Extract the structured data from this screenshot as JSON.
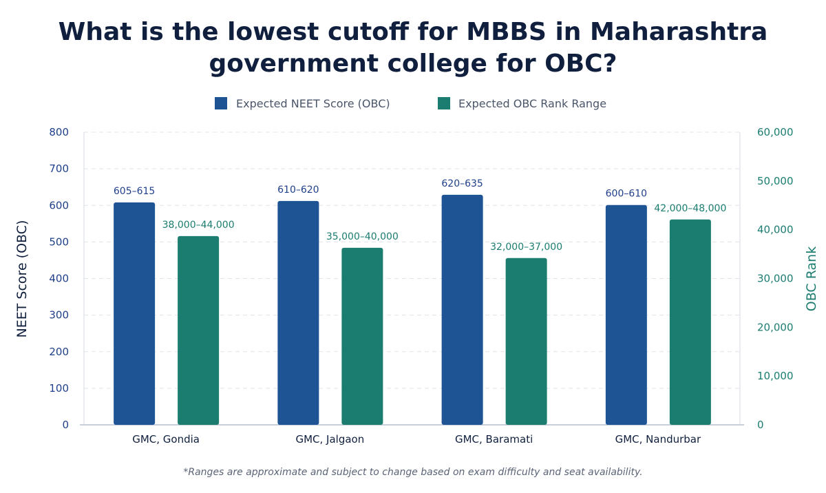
{
  "colors": {
    "primary": "#1f5494",
    "secondary": "#1b7d70",
    "title": "#0f1f3d"
  },
  "chart_data": {
    "type": "bar",
    "title_lines": [
      "What is the lowest cutoff for MBBS in Maharashtra",
      "government college for OBC?"
    ],
    "categories": [
      "GMC, Gondia",
      "GMC, Jalgaon",
      "GMC, Baramati",
      "GMC, Nandurbar"
    ],
    "series": [
      {
        "name": "Expected NEET Score (OBC)",
        "axis": "left",
        "values": [
          608,
          612,
          629,
          601
        ],
        "labels": [
          "605–615",
          "610–620",
          "620–635",
          "600–610"
        ]
      },
      {
        "name": "Expected OBC Rank Range",
        "axis": "right",
        "values": [
          38700,
          36300,
          34200,
          42100
        ],
        "labels": [
          "38,000–44,000",
          "35,000–40,000",
          "32,000–37,000",
          "42,000–48,000"
        ]
      }
    ],
    "ylabel": "NEET Score (OBC)",
    "ylabel_right": "OBC Rank",
    "ylim": [
      0,
      800
    ],
    "ylim_right": [
      0,
      60000
    ],
    "yticks": [
      "0",
      "100",
      "200",
      "300",
      "400",
      "500",
      "600",
      "700",
      "800"
    ],
    "yticks_right": [
      "0",
      "10,000",
      "20,000",
      "30,000",
      "40,000",
      "50,000",
      "60,000"
    ],
    "grid": true,
    "legend_position": "top",
    "footnote": "*Ranges are approximate and subject to change based on exam difficulty and seat availability."
  }
}
